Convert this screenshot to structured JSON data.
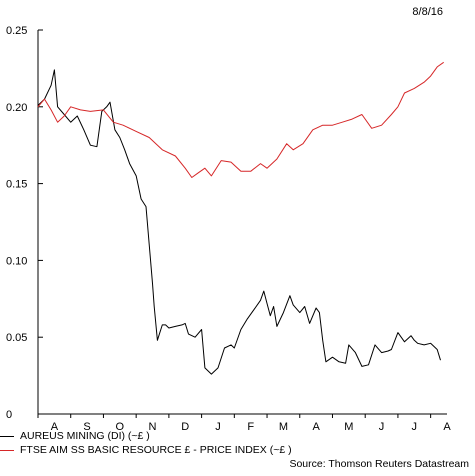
{
  "date": "8/8/16",
  "source": "Source: Thomson Reuters Datastream",
  "colors": {
    "series1": "#000000",
    "series2": "#d62728",
    "axis": "#000000"
  },
  "chart_data": {
    "type": "line",
    "title": "",
    "xlabel": "",
    "ylabel": "",
    "ylim": [
      0,
      0.25
    ],
    "yticks": [
      0,
      0.05,
      0.1,
      0.15,
      0.2,
      0.25
    ],
    "ytick_labels": [
      "0",
      "0.05",
      "0.10",
      "0.15",
      "0.20",
      "0.25"
    ],
    "xlim": [
      0,
      12.5
    ],
    "xtick_labels": [
      "A",
      "S",
      "O",
      "N",
      "D",
      "J",
      "F",
      "M",
      "A",
      "M",
      "J",
      "J",
      "A"
    ],
    "grid": false,
    "legend_position": "bottom-left",
    "series": [
      {
        "name": "AUREUS MINING (DI) (~£ )",
        "color": "#000000",
        "x": [
          0,
          0.2,
          0.4,
          0.5,
          0.6,
          0.8,
          1.0,
          1.2,
          1.4,
          1.6,
          1.8,
          1.95,
          2.1,
          2.2,
          2.35,
          2.5,
          2.65,
          2.8,
          3.0,
          3.15,
          3.3,
          3.5,
          3.55,
          3.65,
          3.8,
          3.9,
          4.0,
          4.2,
          4.4,
          4.5,
          4.6,
          4.8,
          5.0,
          5.1,
          5.3,
          5.5,
          5.7,
          5.9,
          6.0,
          6.2,
          6.4,
          6.6,
          6.8,
          6.9,
          7.0,
          7.1,
          7.2,
          7.3,
          7.5,
          7.7,
          7.8,
          8.0,
          8.15,
          8.3,
          8.5,
          8.6,
          8.7,
          8.8,
          9.0,
          9.2,
          9.4,
          9.5,
          9.7,
          9.9,
          10.1,
          10.3,
          10.5,
          10.7,
          10.8,
          11.0,
          11.2,
          11.4,
          11.5,
          11.6,
          11.8,
          12.0,
          12.2,
          12.3
        ],
        "y": [
          0.201,
          0.205,
          0.214,
          0.224,
          0.2,
          0.195,
          0.19,
          0.194,
          0.185,
          0.175,
          0.174,
          0.197,
          0.2,
          0.203,
          0.185,
          0.18,
          0.172,
          0.163,
          0.155,
          0.14,
          0.135,
          0.085,
          0.07,
          0.048,
          0.058,
          0.058,
          0.056,
          0.057,
          0.058,
          0.059,
          0.052,
          0.05,
          0.055,
          0.03,
          0.026,
          0.03,
          0.043,
          0.045,
          0.043,
          0.055,
          0.062,
          0.068,
          0.074,
          0.08,
          0.072,
          0.064,
          0.07,
          0.057,
          0.066,
          0.077,
          0.071,
          0.066,
          0.07,
          0.059,
          0.069,
          0.066,
          0.048,
          0.034,
          0.037,
          0.034,
          0.033,
          0.045,
          0.04,
          0.031,
          0.032,
          0.045,
          0.04,
          0.041,
          0.042,
          0.053,
          0.047,
          0.051,
          0.048,
          0.046,
          0.045,
          0.046,
          0.042,
          0.035
        ]
      },
      {
        "name": "FTSE AIM SS BASIC RESOURCE £ - PRICE INDEX (~£ )",
        "color": "#d62728",
        "x": [
          0,
          0.2,
          0.4,
          0.6,
          0.8,
          1.0,
          1.3,
          1.6,
          2.0,
          2.3,
          2.6,
          3.0,
          3.4,
          3.8,
          4.2,
          4.5,
          4.7,
          4.9,
          5.1,
          5.3,
          5.6,
          5.9,
          6.2,
          6.5,
          6.8,
          7.0,
          7.3,
          7.6,
          7.8,
          8.1,
          8.4,
          8.7,
          9.0,
          9.3,
          9.6,
          9.9,
          10.2,
          10.5,
          10.8,
          11.0,
          11.2,
          11.5,
          11.8,
          12.0,
          12.2,
          12.4
        ],
        "y": [
          0.2,
          0.205,
          0.198,
          0.19,
          0.194,
          0.2,
          0.198,
          0.197,
          0.198,
          0.19,
          0.188,
          0.184,
          0.18,
          0.172,
          0.168,
          0.16,
          0.154,
          0.157,
          0.16,
          0.155,
          0.165,
          0.164,
          0.158,
          0.158,
          0.163,
          0.16,
          0.166,
          0.176,
          0.172,
          0.176,
          0.185,
          0.188,
          0.188,
          0.19,
          0.192,
          0.195,
          0.186,
          0.188,
          0.195,
          0.2,
          0.209,
          0.212,
          0.216,
          0.22,
          0.226,
          0.229
        ]
      }
    ]
  }
}
